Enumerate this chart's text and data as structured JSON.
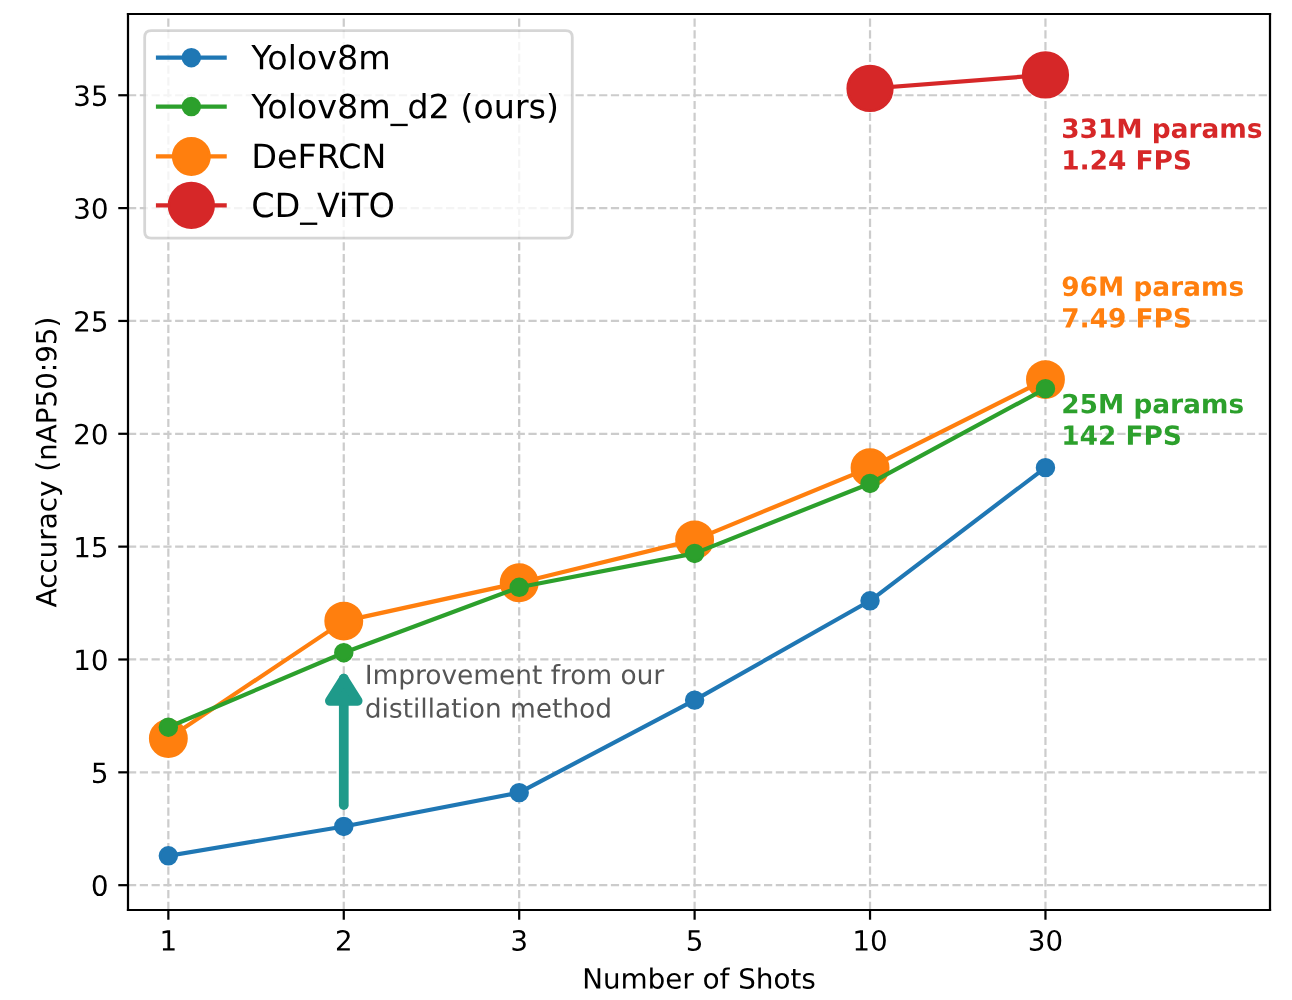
{
  "chart_data": {
    "type": "line",
    "xlabel": "Number of Shots",
    "ylabel": "Accuracy (nAP50:95)",
    "categories": [
      "1",
      "2",
      "3",
      "5",
      "10",
      "30"
    ],
    "series": [
      {
        "name": "Yolov8m",
        "color": "#1f77b4",
        "values": [
          1.3,
          2.6,
          4.1,
          8.2,
          12.6,
          18.5
        ]
      },
      {
        "name": "Yolov8m_d2 (ours)",
        "color": "#2ca02c",
        "values": [
          7.0,
          10.3,
          13.2,
          14.7,
          17.8,
          22.0
        ]
      },
      {
        "name": "DeFRCN",
        "color": "#ff7f0e",
        "values": [
          6.5,
          11.7,
          13.4,
          15.3,
          18.5,
          22.4
        ]
      },
      {
        "name": "CD_ViTO",
        "color": "#d62728",
        "values": [
          null,
          null,
          null,
          null,
          35.3,
          35.9
        ]
      }
    ],
    "ylim": [
      -1.1,
      38.6
    ],
    "yticks": [
      0,
      5,
      10,
      15,
      20,
      25,
      30,
      35
    ],
    "annotations": [
      {
        "text": "331M params\n1.24 FPS",
        "x": "30",
        "y": 35.9
      },
      {
        "text": "96M params\n7.49 FPS",
        "x": "30",
        "y": 22.4
      },
      {
        "text": "25M params\n142 FPS",
        "x": "30",
        "y": 22.0
      },
      {
        "text": "Improvement from our\ndistillation method",
        "x": "2",
        "y": 10.3
      }
    ],
    "grid": true,
    "legend": "top left",
    "marker": "circle",
    "line_style": "solid"
  }
}
